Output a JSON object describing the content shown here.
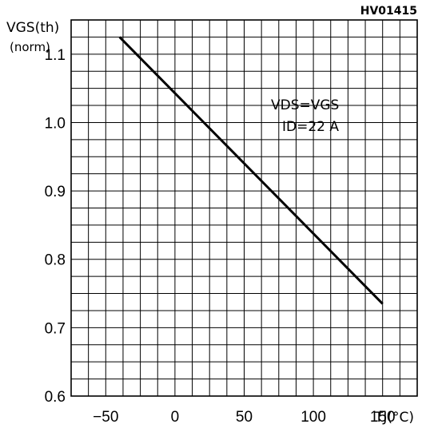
{
  "chart_data": {
    "type": "line",
    "figure_id": "HV01415",
    "ylabel_line1": "VGS(th)",
    "ylabel_line2": "(norm)",
    "xlabel": "TJ(°C)",
    "annotation_line1": "VDS=VGS",
    "annotation_line2": "ID=22 A",
    "xlim": [
      -75,
      175
    ],
    "ylim": [
      0.6,
      1.15
    ],
    "x_ticks": [
      {
        "value": -50,
        "label": "−50"
      },
      {
        "value": 0,
        "label": "0"
      },
      {
        "value": 50,
        "label": "50"
      },
      {
        "value": 100,
        "label": "100"
      },
      {
        "value": 150,
        "label": "150"
      }
    ],
    "y_ticks": [
      {
        "value": 0.6,
        "label": "0.6"
      },
      {
        "value": 0.7,
        "label": "0.7"
      },
      {
        "value": 0.8,
        "label": "0.8"
      },
      {
        "value": 0.9,
        "label": "0.9"
      },
      {
        "value": 1.0,
        "label": "1.0"
      },
      {
        "value": 1.1,
        "label": "1.1"
      }
    ],
    "grid": true,
    "series": [
      {
        "x": [
          -40,
          150
        ],
        "y": [
          1.125,
          0.735
        ]
      }
    ]
  }
}
